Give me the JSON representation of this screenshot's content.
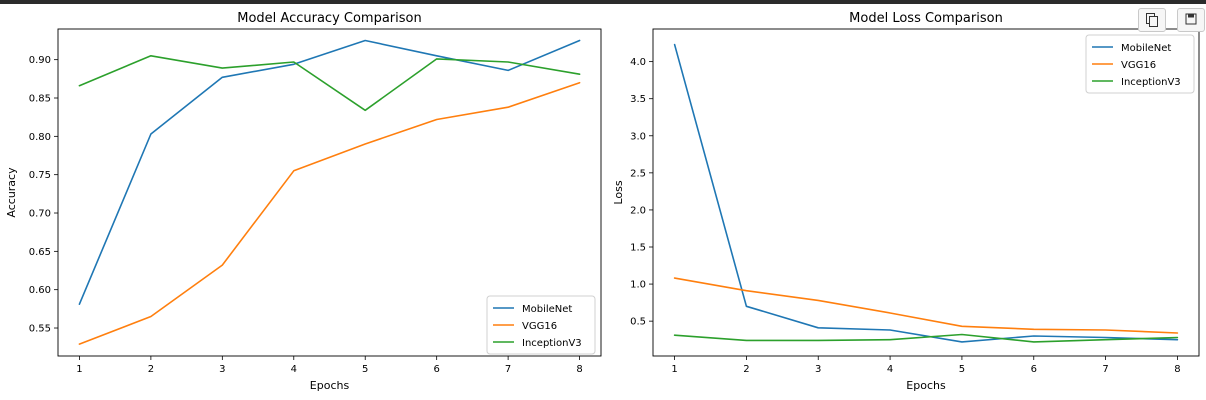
{
  "toolbar": {
    "copy_icon": "copy-icon",
    "save_icon": "save-icon"
  },
  "chart_data": [
    {
      "type": "line",
      "title": "Model Accuracy Comparison",
      "xlabel": "Epochs",
      "ylabel": "Accuracy",
      "x": [
        1,
        2,
        3,
        4,
        5,
        6,
        7,
        8
      ],
      "xlim": [
        0.7,
        8.3
      ],
      "ylim": [
        0.5135,
        0.94
      ],
      "xticks": [
        "1",
        "2",
        "3",
        "4",
        "5",
        "6",
        "7",
        "8"
      ],
      "yticks": [
        "0.55",
        "0.60",
        "0.65",
        "0.70",
        "0.75",
        "0.80",
        "0.85",
        "0.90"
      ],
      "grid": false,
      "legend": "lower right",
      "series": [
        {
          "name": "MobileNet",
          "color": "#1f77b4",
          "values": [
            0.581,
            0.803,
            0.877,
            0.894,
            0.925,
            0.905,
            0.886,
            0.925
          ]
        },
        {
          "name": "VGG16",
          "color": "#ff7f0e",
          "values": [
            0.529,
            0.565,
            0.632,
            0.755,
            0.79,
            0.822,
            0.838,
            0.87
          ]
        },
        {
          "name": "InceptionV3",
          "color": "#2ca02c",
          "values": [
            0.866,
            0.905,
            0.889,
            0.897,
            0.834,
            0.901,
            0.897,
            0.881
          ]
        }
      ]
    },
    {
      "type": "line",
      "title": "Model Loss Comparison",
      "xlabel": "Epochs",
      "ylabel": "Loss",
      "x": [
        1,
        2,
        3,
        4,
        5,
        6,
        7,
        8
      ],
      "xlim": [
        0.7,
        8.3
      ],
      "ylim": [
        0.03,
        4.44
      ],
      "xticks": [
        "1",
        "2",
        "3",
        "4",
        "5",
        "6",
        "7",
        "8"
      ],
      "yticks": [
        "0.5",
        "1.0",
        "1.5",
        "2.0",
        "2.5",
        "3.0",
        "3.5",
        "4.0"
      ],
      "grid": false,
      "legend": "upper right",
      "series": [
        {
          "name": "MobileNet",
          "color": "#1f77b4",
          "values": [
            4.23,
            0.7,
            0.41,
            0.38,
            0.22,
            0.3,
            0.28,
            0.25
          ]
        },
        {
          "name": "VGG16",
          "color": "#ff7f0e",
          "values": [
            1.08,
            0.91,
            0.78,
            0.61,
            0.43,
            0.39,
            0.38,
            0.34
          ]
        },
        {
          "name": "InceptionV3",
          "color": "#2ca02c",
          "values": [
            0.31,
            0.24,
            0.24,
            0.25,
            0.32,
            0.22,
            0.25,
            0.28
          ]
        }
      ]
    }
  ]
}
